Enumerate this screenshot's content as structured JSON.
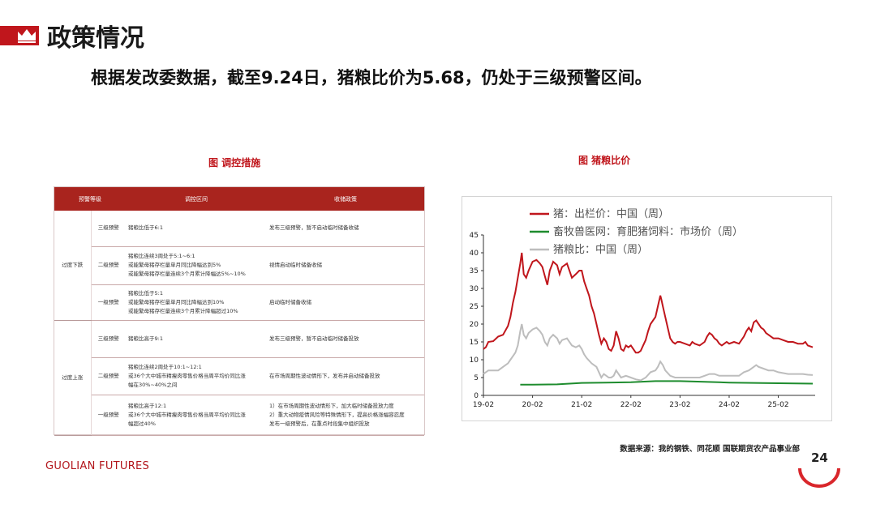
{
  "header": {
    "title": "政策情况"
  },
  "headline": "根据发改委数据，截至9.24日，猪粮比价为5.68，仍处于三级预警区间。",
  "table_section": {
    "title": "图 调控措施",
    "columns": [
      "预警等级",
      "调控区间",
      "收储政策"
    ],
    "groups": [
      {
        "name": "过度下跌",
        "rows": [
          {
            "level": "三级预警",
            "range": [
              "猪粮比低于6:1"
            ],
            "policy": [
              "发布三级预警，暂不启动临时储备收储"
            ]
          },
          {
            "level": "二级预警",
            "range": [
              "猪粮比连续3周处于5:1~6:1",
              "或能繁母猪存栏量单月同比降幅达到5%",
              "或能繁母猪存栏量连续3个月累计降幅达5%~10%"
            ],
            "policy": [
              "视情启动临时储备收储"
            ]
          },
          {
            "level": "一级预警",
            "range": [
              "猪粮比低于5:1",
              "或能繁母猪存栏量单月同比降幅达到10%",
              "或能繁母猪存栏量连续3个月累计降幅超过10%"
            ],
            "policy": [
              "启动临时储备收储"
            ]
          }
        ]
      },
      {
        "name": "过度上涨",
        "rows": [
          {
            "level": "三级预警",
            "range": [
              "猪粮比高于9:1"
            ],
            "policy": [
              "发布三级预警，暂不启动临时储备投放"
            ]
          },
          {
            "level": "二级预警",
            "range": [
              "猪粮比连续2周处于10:1~12:1",
              "或36个大中城市精瘦肉零售价格当周平均价同比涨",
              "幅在30%~40%之间"
            ],
            "policy": [
              "在市场周期性波动情形下，发布并启动储备投放"
            ]
          },
          {
            "level": "一级预警",
            "range": [
              "猪粮比高于12:1",
              "或36个大中城市精瘦肉零售价格当周平均价同比涨",
              "幅超过40%"
            ],
            "policy": [
              "1）在市场周期性波动情形下，加大临时储备投放力度",
              "2）重大动物疫情风险等特殊情形下，提高价格涨幅容忍度",
              "发布一级预警后，在重点时段集中组织投放"
            ]
          }
        ]
      }
    ]
  },
  "chart_section": {
    "title": "图 猪粮比价"
  },
  "chart_data": {
    "type": "line",
    "title": "图 猪粮比价",
    "ylim": [
      0,
      45
    ],
    "yticks": [
      0,
      5,
      10,
      15,
      20,
      25,
      30,
      35,
      40,
      45
    ],
    "xlim": [
      2019.0,
      2025.75
    ],
    "xticks": [
      {
        "label": "19-02",
        "x": 2019.0
      },
      {
        "label": "20-02",
        "x": 2020.0
      },
      {
        "label": "21-02",
        "x": 2021.0
      },
      {
        "label": "22-02",
        "x": 2022.0
      },
      {
        "label": "23-02",
        "x": 2023.0
      },
      {
        "label": "24-02",
        "x": 2024.0
      },
      {
        "label": "25-02",
        "x": 2025.0
      }
    ],
    "legend_position": "top-left",
    "grid": false,
    "series": [
      {
        "name": "猪：出栏价：中国（周）",
        "color": "#c0161c",
        "points": [
          [
            2019.0,
            13
          ],
          [
            2019.05,
            13.5
          ],
          [
            2019.1,
            15
          ],
          [
            2019.2,
            15.2
          ],
          [
            2019.3,
            16.5
          ],
          [
            2019.4,
            17
          ],
          [
            2019.5,
            19.5
          ],
          [
            2019.55,
            22
          ],
          [
            2019.6,
            26
          ],
          [
            2019.65,
            29
          ],
          [
            2019.7,
            33
          ],
          [
            2019.75,
            37
          ],
          [
            2019.78,
            40
          ],
          [
            2019.82,
            34
          ],
          [
            2019.87,
            33
          ],
          [
            2019.92,
            35
          ],
          [
            2020.0,
            37.5
          ],
          [
            2020.08,
            38
          ],
          [
            2020.15,
            37
          ],
          [
            2020.2,
            36
          ],
          [
            2020.25,
            33.5
          ],
          [
            2020.3,
            31
          ],
          [
            2020.35,
            35
          ],
          [
            2020.42,
            37.5
          ],
          [
            2020.5,
            36.5
          ],
          [
            2020.55,
            34
          ],
          [
            2020.6,
            36
          ],
          [
            2020.7,
            37
          ],
          [
            2020.8,
            33
          ],
          [
            2020.88,
            34
          ],
          [
            2020.95,
            35
          ],
          [
            2021.0,
            35
          ],
          [
            2021.05,
            32
          ],
          [
            2021.1,
            30
          ],
          [
            2021.15,
            28
          ],
          [
            2021.2,
            25
          ],
          [
            2021.25,
            23
          ],
          [
            2021.3,
            20
          ],
          [
            2021.35,
            17
          ],
          [
            2021.4,
            14.5
          ],
          [
            2021.45,
            16
          ],
          [
            2021.5,
            15
          ],
          [
            2021.55,
            13
          ],
          [
            2021.6,
            12.5
          ],
          [
            2021.65,
            14
          ],
          [
            2021.7,
            18
          ],
          [
            2021.75,
            16
          ],
          [
            2021.8,
            13
          ],
          [
            2021.85,
            12.5
          ],
          [
            2021.9,
            14
          ],
          [
            2021.95,
            13.5
          ],
          [
            2022.0,
            14
          ],
          [
            2022.05,
            13
          ],
          [
            2022.1,
            12
          ],
          [
            2022.15,
            12
          ],
          [
            2022.2,
            12.5
          ],
          [
            2022.25,
            14
          ],
          [
            2022.3,
            15.5
          ],
          [
            2022.35,
            18
          ],
          [
            2022.4,
            20
          ],
          [
            2022.5,
            22
          ],
          [
            2022.55,
            25
          ],
          [
            2022.6,
            28
          ],
          [
            2022.62,
            27
          ],
          [
            2022.65,
            25
          ],
          [
            2022.7,
            22
          ],
          [
            2022.75,
            19
          ],
          [
            2022.8,
            16
          ],
          [
            2022.85,
            15
          ],
          [
            2022.9,
            14.5
          ],
          [
            2022.95,
            15
          ],
          [
            2023.0,
            15
          ],
          [
            2023.1,
            14.5
          ],
          [
            2023.2,
            14
          ],
          [
            2023.25,
            15
          ],
          [
            2023.3,
            14.5
          ],
          [
            2023.4,
            14
          ],
          [
            2023.5,
            15
          ],
          [
            2023.55,
            16.5
          ],
          [
            2023.6,
            17.5
          ],
          [
            2023.65,
            17
          ],
          [
            2023.7,
            16
          ],
          [
            2023.75,
            15.5
          ],
          [
            2023.8,
            14.5
          ],
          [
            2023.85,
            14
          ],
          [
            2023.9,
            14.5
          ],
          [
            2023.95,
            15
          ],
          [
            2024.0,
            14.5
          ],
          [
            2024.1,
            15
          ],
          [
            2024.2,
            14.5
          ],
          [
            2024.3,
            16.5
          ],
          [
            2024.35,
            18
          ],
          [
            2024.4,
            19
          ],
          [
            2024.45,
            18
          ],
          [
            2024.5,
            20.5
          ],
          [
            2024.55,
            21
          ],
          [
            2024.6,
            20
          ],
          [
            2024.65,
            19
          ],
          [
            2024.7,
            18.5
          ],
          [
            2024.75,
            17.5
          ],
          [
            2024.8,
            17
          ],
          [
            2024.85,
            16.5
          ],
          [
            2024.9,
            16
          ],
          [
            2024.95,
            16
          ],
          [
            2025.0,
            16
          ],
          [
            2025.1,
            15.5
          ],
          [
            2025.2,
            15
          ],
          [
            2025.3,
            15
          ],
          [
            2025.4,
            14.5
          ],
          [
            2025.5,
            14.5
          ],
          [
            2025.55,
            15
          ],
          [
            2025.6,
            14
          ],
          [
            2025.7,
            13.5
          ]
        ]
      },
      {
        "name": "畜牧兽医网：育肥猪饲料：市场价（周）",
        "color": "#1e8c2e",
        "points": [
          [
            2019.75,
            3.0
          ],
          [
            2020.0,
            3.0
          ],
          [
            2020.5,
            3.1
          ],
          [
            2021.0,
            3.5
          ],
          [
            2021.5,
            3.6
          ],
          [
            2022.0,
            3.7
          ],
          [
            2022.5,
            4.0
          ],
          [
            2023.0,
            4.0
          ],
          [
            2023.5,
            3.8
          ],
          [
            2024.0,
            3.6
          ],
          [
            2024.5,
            3.5
          ],
          [
            2025.0,
            3.4
          ],
          [
            2025.7,
            3.3
          ]
        ]
      },
      {
        "name": "猪粮比：中国（周）",
        "color": "#bdbdbd",
        "points": [
          [
            2019.0,
            6
          ],
          [
            2019.1,
            7
          ],
          [
            2019.2,
            7
          ],
          [
            2019.3,
            7
          ],
          [
            2019.4,
            8
          ],
          [
            2019.5,
            9
          ],
          [
            2019.55,
            10
          ],
          [
            2019.6,
            11
          ],
          [
            2019.65,
            12
          ],
          [
            2019.7,
            14
          ],
          [
            2019.75,
            18
          ],
          [
            2019.78,
            20
          ],
          [
            2019.82,
            17
          ],
          [
            2019.87,
            16
          ],
          [
            2019.92,
            17.5
          ],
          [
            2020.0,
            18.5
          ],
          [
            2020.08,
            19
          ],
          [
            2020.15,
            18
          ],
          [
            2020.2,
            17
          ],
          [
            2020.25,
            15
          ],
          [
            2020.3,
            14
          ],
          [
            2020.35,
            16
          ],
          [
            2020.42,
            17
          ],
          [
            2020.5,
            16
          ],
          [
            2020.55,
            14.5
          ],
          [
            2020.6,
            15.5
          ],
          [
            2020.7,
            16
          ],
          [
            2020.8,
            14
          ],
          [
            2020.88,
            13.5
          ],
          [
            2020.95,
            14
          ],
          [
            2021.0,
            13
          ],
          [
            2021.05,
            11.5
          ],
          [
            2021.1,
            10.5
          ],
          [
            2021.2,
            9
          ],
          [
            2021.3,
            8
          ],
          [
            2021.35,
            6.5
          ],
          [
            2021.4,
            5
          ],
          [
            2021.45,
            6
          ],
          [
            2021.5,
            5.5
          ],
          [
            2021.55,
            5
          ],
          [
            2021.6,
            5
          ],
          [
            2021.65,
            5.5
          ],
          [
            2021.7,
            7
          ],
          [
            2021.75,
            6
          ],
          [
            2021.8,
            5
          ],
          [
            2021.9,
            5.5
          ],
          [
            2022.0,
            5
          ],
          [
            2022.1,
            4.5
          ],
          [
            2022.2,
            4.2
          ],
          [
            2022.3,
            5
          ],
          [
            2022.4,
            6.5
          ],
          [
            2022.5,
            7
          ],
          [
            2022.55,
            8
          ],
          [
            2022.6,
            9.5
          ],
          [
            2022.65,
            8.5
          ],
          [
            2022.7,
            7
          ],
          [
            2022.8,
            5.5
          ],
          [
            2022.9,
            5
          ],
          [
            2023.0,
            5
          ],
          [
            2023.2,
            5
          ],
          [
            2023.4,
            5
          ],
          [
            2023.5,
            5.5
          ],
          [
            2023.6,
            6
          ],
          [
            2023.7,
            6
          ],
          [
            2023.8,
            5.5
          ],
          [
            2023.9,
            5.5
          ],
          [
            2024.0,
            5.5
          ],
          [
            2024.2,
            5.5
          ],
          [
            2024.3,
            6.5
          ],
          [
            2024.4,
            7
          ],
          [
            2024.5,
            8
          ],
          [
            2024.55,
            8.5
          ],
          [
            2024.6,
            8
          ],
          [
            2024.7,
            7.5
          ],
          [
            2024.8,
            7
          ],
          [
            2024.9,
            7
          ],
          [
            2025.0,
            6.5
          ],
          [
            2025.2,
            6
          ],
          [
            2025.4,
            6
          ],
          [
            2025.5,
            6
          ],
          [
            2025.6,
            5.8
          ],
          [
            2025.7,
            5.7
          ]
        ]
      }
    ]
  },
  "source": "数据来源：我的钢铁、同花顺 国联期货农产品事业部",
  "footer": {
    "brand": "GUOLIAN FUTURES",
    "page": "24"
  },
  "colors": {
    "brand_red": "#c0161c",
    "table_header": "#a9241e"
  }
}
